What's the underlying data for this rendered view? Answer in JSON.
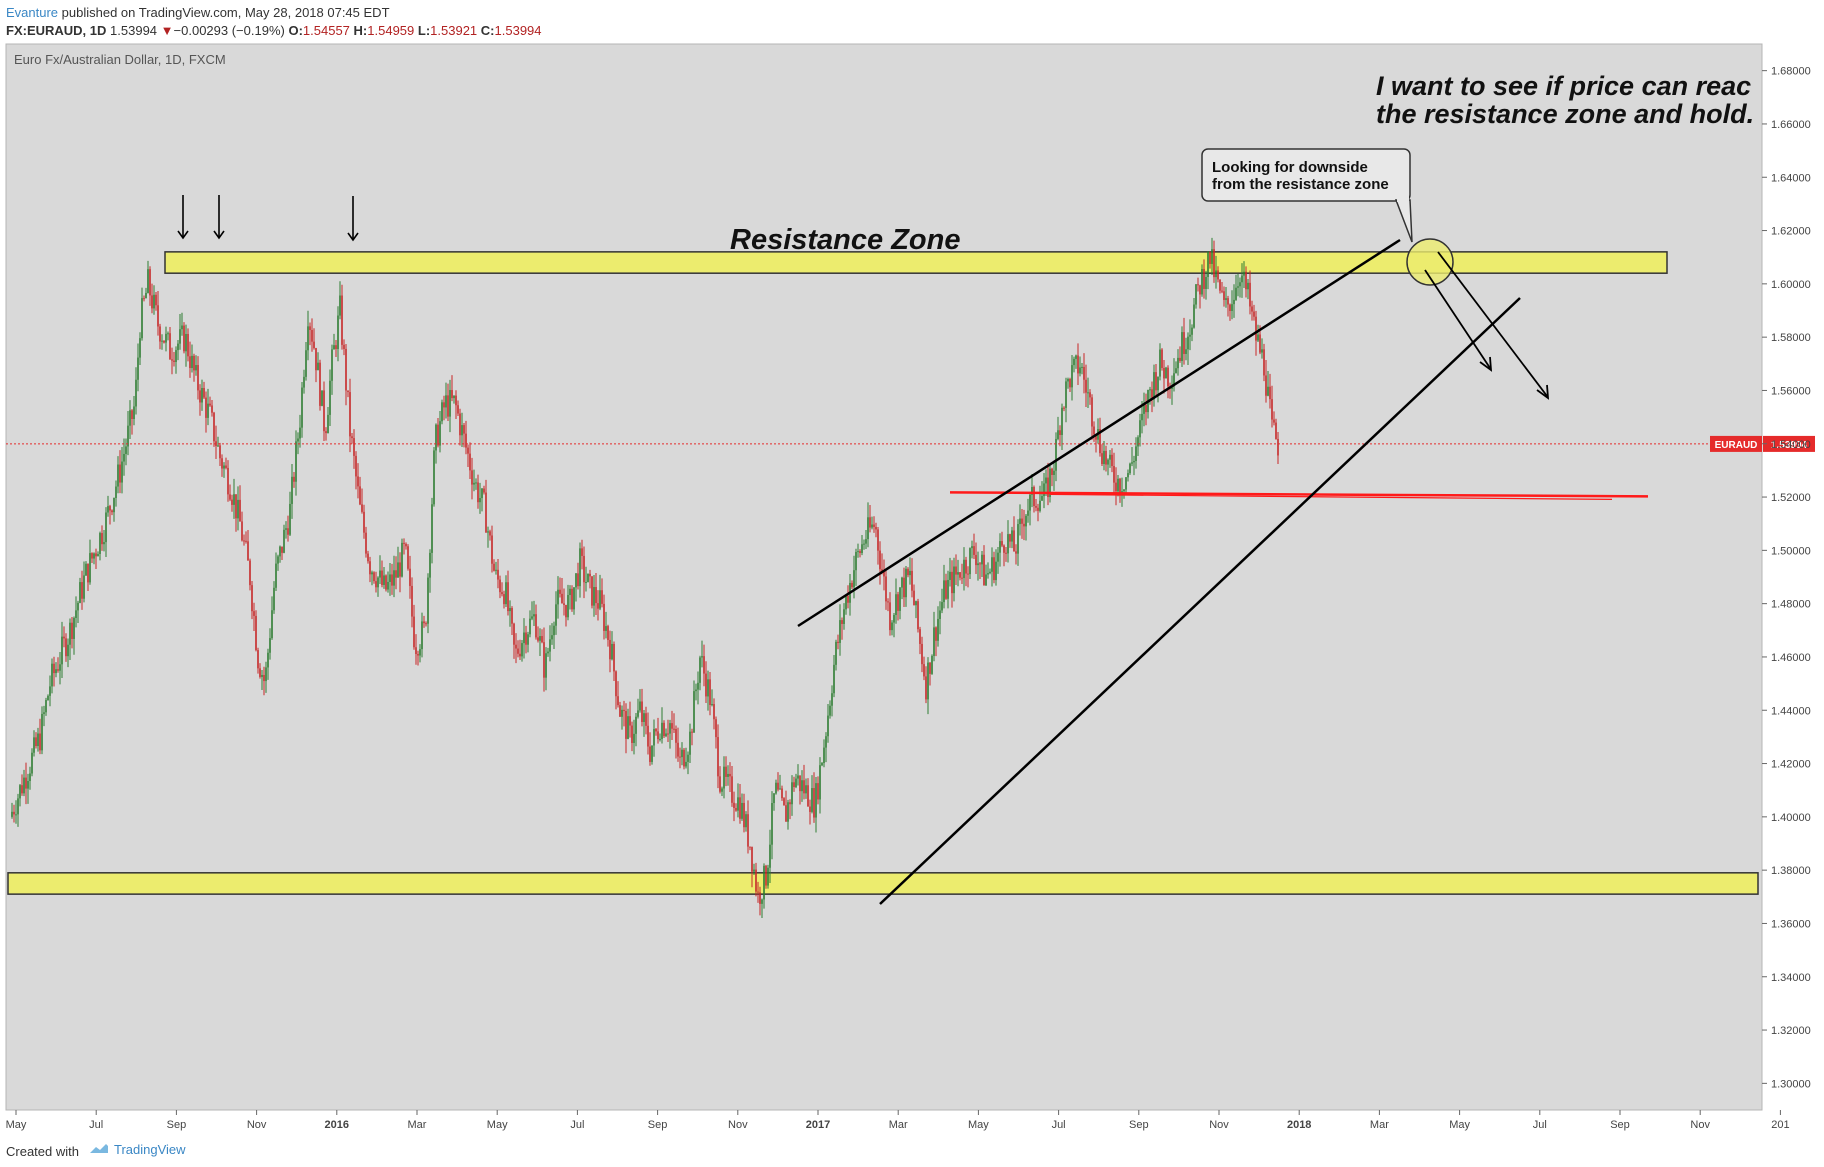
{
  "header": {
    "author": "Evanture",
    "published": " published on TradingView.com, May 28, 2018 07:45 EDT",
    "symbol": "FX:EURAUD, 1D",
    "last": "1.53994",
    "change_arrow": "▼",
    "change": "−0.00293 (−0.19%)",
    "o_label": "O:",
    "o_value": "1.54557",
    "h_label": "H:",
    "h_value": "1.54959",
    "l_label": "L:",
    "l_value": "1.53921",
    "c_label": "C:",
    "c_value": "1.53994"
  },
  "chart_data": {
    "type": "candlestick",
    "title": "Euro Fx/Australian Dollar, 1D, FXCM",
    "ylim": [
      1.29,
      1.69
    ],
    "y_ticks": [
      "1.68000",
      "1.66000",
      "1.64000",
      "1.62000",
      "1.60000",
      "1.58000",
      "1.56000",
      "1.54000",
      "1.52000",
      "1.50000",
      "1.48000",
      "1.46000",
      "1.44000",
      "1.42000",
      "1.40000",
      "1.38000",
      "1.36000",
      "1.34000",
      "1.32000",
      "1.30000"
    ],
    "x_ticks": [
      "May",
      "Jul",
      "Sep",
      "Nov",
      "2016",
      "Mar",
      "May",
      "Jul",
      "Sep",
      "Nov",
      "2017",
      "Mar",
      "May",
      "Jul",
      "Sep",
      "Nov",
      "2018",
      "Mar",
      "May",
      "Jul",
      "Sep",
      "Nov",
      "201"
    ],
    "x_tick_bold": [
      false,
      false,
      false,
      false,
      true,
      false,
      false,
      false,
      false,
      false,
      true,
      false,
      false,
      false,
      false,
      false,
      true,
      false,
      false,
      false,
      false,
      false,
      false
    ],
    "price_path": [
      [
        0,
        1.4
      ],
      [
        10,
        1.41
      ],
      [
        30,
        1.43
      ],
      [
        40,
        1.45
      ],
      [
        60,
        1.47
      ],
      [
        75,
        1.49
      ],
      [
        95,
        1.51
      ],
      [
        110,
        1.53
      ],
      [
        125,
        1.555
      ],
      [
        130,
        1.585
      ],
      [
        138,
        1.6
      ],
      [
        148,
        1.585
      ],
      [
        160,
        1.575
      ],
      [
        175,
        1.58
      ],
      [
        185,
        1.565
      ],
      [
        200,
        1.55
      ],
      [
        210,
        1.535
      ],
      [
        220,
        1.525
      ],
      [
        230,
        1.51
      ],
      [
        240,
        1.49
      ],
      [
        248,
        1.46
      ],
      [
        255,
        1.45
      ],
      [
        265,
        1.49
      ],
      [
        280,
        1.515
      ],
      [
        290,
        1.55
      ],
      [
        298,
        1.59
      ],
      [
        305,
        1.575
      ],
      [
        315,
        1.545
      ],
      [
        322,
        1.57
      ],
      [
        330,
        1.59
      ],
      [
        340,
        1.545
      ],
      [
        350,
        1.515
      ],
      [
        360,
        1.495
      ],
      [
        375,
        1.485
      ],
      [
        385,
        1.49
      ],
      [
        395,
        1.5
      ],
      [
        405,
        1.465
      ],
      [
        415,
        1.47
      ],
      [
        425,
        1.54
      ],
      [
        435,
        1.555
      ],
      [
        445,
        1.555
      ],
      [
        455,
        1.54
      ],
      [
        465,
        1.525
      ],
      [
        475,
        1.515
      ],
      [
        485,
        1.49
      ],
      [
        495,
        1.485
      ],
      [
        505,
        1.46
      ],
      [
        515,
        1.47
      ],
      [
        525,
        1.475
      ],
      [
        535,
        1.455
      ],
      [
        545,
        1.48
      ],
      [
        560,
        1.48
      ],
      [
        570,
        1.495
      ],
      [
        580,
        1.485
      ],
      [
        590,
        1.48
      ],
      [
        600,
        1.465
      ],
      [
        610,
        1.44
      ],
      [
        620,
        1.43
      ],
      [
        630,
        1.44
      ],
      [
        640,
        1.425
      ],
      [
        650,
        1.435
      ],
      [
        660,
        1.435
      ],
      [
        670,
        1.42
      ],
      [
        680,
        1.43
      ],
      [
        690,
        1.46
      ],
      [
        700,
        1.445
      ],
      [
        710,
        1.415
      ],
      [
        720,
        1.41
      ],
      [
        730,
        1.405
      ],
      [
        740,
        1.39
      ],
      [
        748,
        1.37
      ],
      [
        756,
        1.378
      ],
      [
        765,
        1.41
      ],
      [
        775,
        1.4
      ],
      [
        785,
        1.415
      ],
      [
        795,
        1.41
      ],
      [
        805,
        1.405
      ],
      [
        815,
        1.43
      ],
      [
        825,
        1.46
      ],
      [
        835,
        1.48
      ],
      [
        845,
        1.495
      ],
      [
        855,
        1.505
      ],
      [
        865,
        1.51
      ],
      [
        873,
        1.49
      ],
      [
        880,
        1.475
      ],
      [
        890,
        1.485
      ],
      [
        900,
        1.49
      ],
      [
        908,
        1.47
      ],
      [
        916,
        1.45
      ],
      [
        925,
        1.47
      ],
      [
        935,
        1.485
      ],
      [
        945,
        1.49
      ],
      [
        955,
        1.495
      ],
      [
        965,
        1.5
      ],
      [
        975,
        1.49
      ],
      [
        985,
        1.495
      ],
      [
        995,
        1.505
      ],
      [
        1005,
        1.5
      ],
      [
        1015,
        1.515
      ],
      [
        1025,
        1.52
      ],
      [
        1035,
        1.52
      ],
      [
        1045,
        1.535
      ],
      [
        1052,
        1.555
      ],
      [
        1060,
        1.565
      ],
      [
        1070,
        1.57
      ],
      [
        1080,
        1.555
      ],
      [
        1090,
        1.54
      ],
      [
        1100,
        1.53
      ],
      [
        1110,
        1.525
      ],
      [
        1120,
        1.53
      ],
      [
        1130,
        1.545
      ],
      [
        1140,
        1.56
      ],
      [
        1150,
        1.57
      ],
      [
        1160,
        1.565
      ],
      [
        1170,
        1.575
      ],
      [
        1180,
        1.585
      ],
      [
        1190,
        1.6
      ],
      [
        1200,
        1.61
      ],
      [
        1207,
        1.6
      ],
      [
        1215,
        1.59
      ],
      [
        1222,
        1.595
      ],
      [
        1230,
        1.605
      ],
      [
        1238,
        1.595
      ],
      [
        1246,
        1.58
      ],
      [
        1254,
        1.57
      ],
      [
        1262,
        1.545
      ],
      [
        1268,
        1.54
      ]
    ],
    "resistance_zone": [
      1.604,
      1.612
    ],
    "support_zone": [
      1.371,
      1.379
    ],
    "red_level": 1.521,
    "last_price": 1.53994,
    "last_price_label": "1.53994",
    "symbol_badge": "EURAUD",
    "annotations": {
      "resistance_label": "Resistance Zone",
      "headline_line1": "I want to see if price can reac",
      "headline_line2": "the resistance zone and hold.",
      "callout_line1": "Looking for downside",
      "callout_line2": "from the resistance zone"
    },
    "colors": {
      "background": "#d9d9d9",
      "zone_fill": "#ecec6e",
      "up_candle": "#2e7d32",
      "down_candle": "#c62828",
      "trend_lines": "#000000",
      "red_line": "#ff1a1a",
      "price_badge": "#e52b2b"
    }
  },
  "footer": {
    "created": "Created with",
    "brand": "TradingView"
  }
}
